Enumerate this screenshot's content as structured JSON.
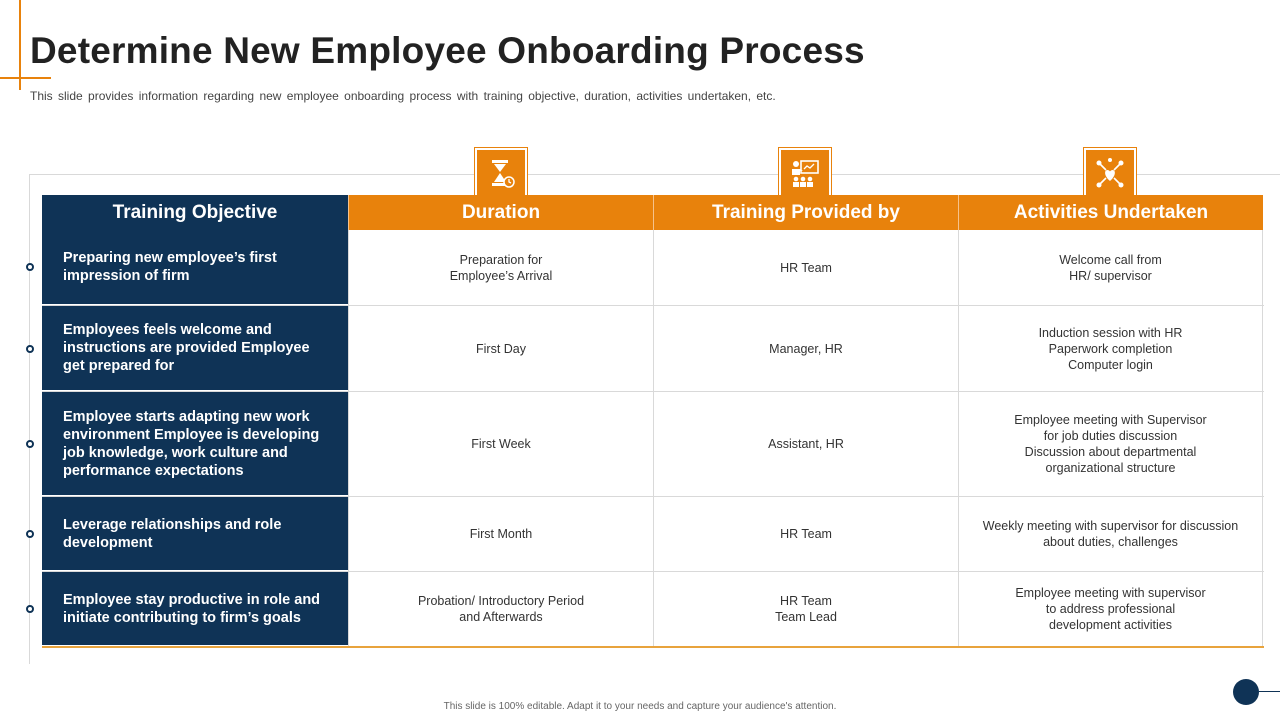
{
  "title": "Determine New Employee Onboarding Process",
  "subtitle": "This slide provides information regarding new employee onboarding process with training objective, duration, activities undertaken, etc.",
  "icons": {
    "duration": "hourglass-clock-icon",
    "training": "presentation-audience-icon",
    "activities": "network-heart-icon"
  },
  "colors": {
    "navy": "#0f3356",
    "orange": "#e8820c"
  },
  "table": {
    "headers": [
      "Training Objective",
      "Duration",
      "Training Provided by",
      "Activities Undertaken"
    ],
    "rows": [
      {
        "objective": "Preparing new employee’s first impression of firm",
        "duration": "Preparation for\nEmployee’s Arrival",
        "provided_by": "HR Team",
        "activities": "Welcome call from\nHR/ supervisor"
      },
      {
        "objective": "Employees feels welcome and instructions are provided Employee get prepared for",
        "duration": "First Day",
        "provided_by": "Manager,  HR",
        "activities": "Induction session with HR\nPaperwork completion\nComputer login"
      },
      {
        "objective": "Employee starts adapting new work environment Employee is developing job knowledge, work culture and performance expectations",
        "duration": "First Week",
        "provided_by": "Assistant, HR",
        "activities": "Employee meeting with Supervisor\nfor job duties discussion\nDiscussion about departmental\norganizational structure"
      },
      {
        "objective": "Leverage relationships and role development",
        "duration": "First Month",
        "provided_by": "HR Team",
        "activities": "Weekly meeting with supervisor  for discussion\nabout duties, challenges"
      },
      {
        "objective": "Employee stay  productive in role and initiate contributing to firm’s goals",
        "duration": "Probation/ Introductory Period\nand Afterwards",
        "provided_by": "HR Team\nTeam Lead",
        "activities": "Employee meeting with supervisor\nto address professional\ndevelopment  activities"
      }
    ]
  },
  "footer": "This slide is 100% editable.  Adapt it to your needs and capture your audience's attention."
}
